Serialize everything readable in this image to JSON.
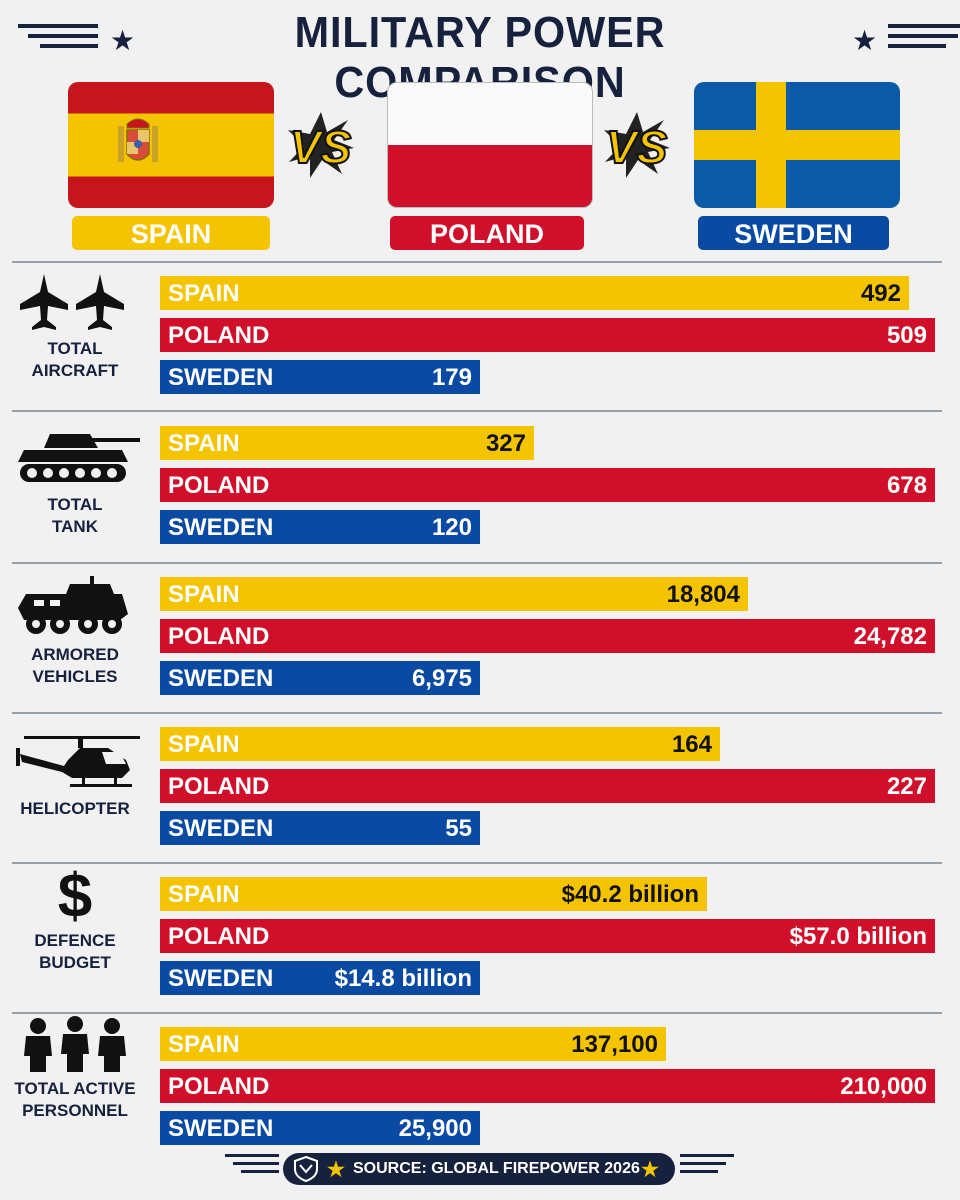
{
  "title": "MILITARY POWER COMPARISON",
  "vs_label": "VS",
  "countries": [
    "SPAIN",
    "POLAND",
    "SWEDEN"
  ],
  "colors": {
    "spain": "#f5c400",
    "poland": "#d0102a",
    "sweden": "#0a4aa3",
    "navy": "#16213e"
  },
  "source": "SOURCE: GLOBAL FIREPOWER 2026",
  "chart_data": [
    {
      "type": "bar",
      "title": "TOTAL AIRCRAFT",
      "icon": "fighter-jet-icon",
      "categories": [
        "SPAIN",
        "POLAND",
        "SWEDEN"
      ],
      "values": [
        492,
        509,
        179
      ],
      "labels": [
        "492",
        "509",
        "179"
      ]
    },
    {
      "type": "bar",
      "title": "TOTAL TANK",
      "icon": "tank-icon",
      "categories": [
        "SPAIN",
        "POLAND",
        "SWEDEN"
      ],
      "values": [
        327,
        678,
        120
      ],
      "labels": [
        "327",
        "678",
        "120"
      ]
    },
    {
      "type": "bar",
      "title": "ARMORED VEHICLES",
      "icon": "armored-vehicle-icon",
      "categories": [
        "SPAIN",
        "POLAND",
        "SWEDEN"
      ],
      "values": [
        18804,
        24782,
        6975
      ],
      "labels": [
        "18,804",
        "24,782",
        "6,975"
      ]
    },
    {
      "type": "bar",
      "title": "HELICOPTER",
      "icon": "helicopter-icon",
      "categories": [
        "SPAIN",
        "POLAND",
        "SWEDEN"
      ],
      "values": [
        164,
        227,
        55
      ],
      "labels": [
        "164",
        "227",
        "55"
      ]
    },
    {
      "type": "bar",
      "title": "DEFENCE BUDGET",
      "icon": "dollar-icon",
      "categories": [
        "SPAIN",
        "POLAND",
        "SWEDEN"
      ],
      "values": [
        40.2,
        57.0,
        14.8
      ],
      "labels": [
        "$40.2 billion",
        "$57.0 billion",
        "$14.8 billion"
      ],
      "unit": "billion USD"
    },
    {
      "type": "bar",
      "title": "TOTAL ACTIVE PERSONNEL",
      "icon": "soldiers-icon",
      "categories": [
        "SPAIN",
        "POLAND",
        "SWEDEN"
      ],
      "values": [
        137100,
        210000,
        25900
      ],
      "labels": [
        "137,100",
        "210,000",
        "25,900"
      ]
    }
  ]
}
